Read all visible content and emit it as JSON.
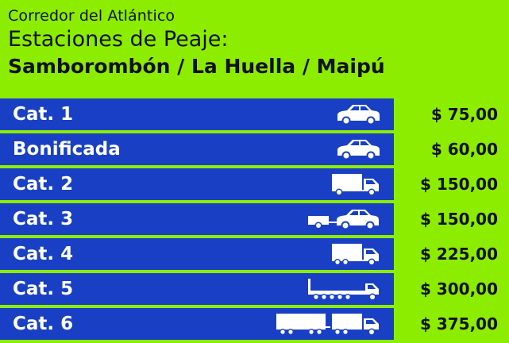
{
  "header": {
    "corridor": "Corredor del Atlántico",
    "subtitle": "Estaciones de Peaje:",
    "stations": "Samborombón / La Huella / Maipú"
  },
  "rows": [
    {
      "label": "Cat. 1",
      "price": "$ 75,00",
      "vehicle": "car-icon"
    },
    {
      "label": "Bonificada",
      "price": "$ 60,00",
      "vehicle": "car-icon"
    },
    {
      "label": "Cat. 2",
      "price": "$ 150,00",
      "vehicle": "truck-icon"
    },
    {
      "label": "Cat. 3",
      "price": "$ 150,00",
      "vehicle": "car-with-trailer-icon"
    },
    {
      "label": "Cat. 4",
      "price": "$ 225,00",
      "vehicle": "truck-icon"
    },
    {
      "label": "Cat. 5",
      "price": "$ 300,00",
      "vehicle": "semi-trailer-truck-icon"
    },
    {
      "label": "Cat. 6",
      "price": "$ 375,00",
      "vehicle": "truck-with-trailer-icon"
    }
  ],
  "colors": {
    "background": "#8ced00",
    "category_band": "#1940c4",
    "text_dark": "#111111",
    "text_light": "#ffffff"
  }
}
